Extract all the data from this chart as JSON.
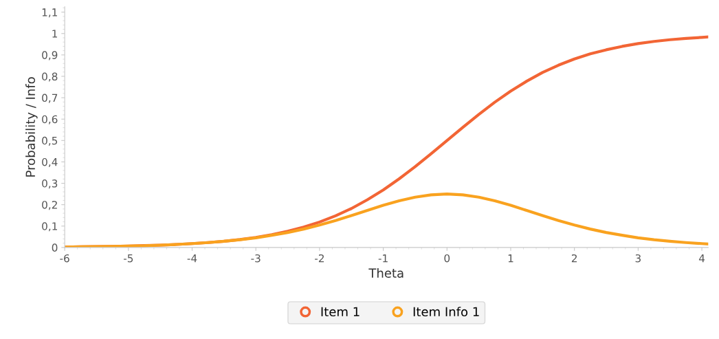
{
  "chart_data": {
    "type": "line",
    "xlabel": "Theta",
    "ylabel": "Probability / Info",
    "x": [
      -6,
      -5.75,
      -5.5,
      -5.25,
      -5,
      -4.75,
      -4.5,
      -4.25,
      -4,
      -3.75,
      -3.5,
      -3.25,
      -3,
      -2.75,
      -2.5,
      -2.25,
      -2,
      -1.75,
      -1.5,
      -1.25,
      -1,
      -0.75,
      -0.5,
      -0.25,
      0,
      0.25,
      0.5,
      0.75,
      1,
      1.25,
      1.5,
      1.75,
      2,
      2.25,
      2.5,
      2.75,
      3,
      3.25,
      3.5,
      3.75,
      4,
      4.1
    ],
    "series": [
      {
        "name": "Item 1",
        "color": "#f26535",
        "values": [
          0.002,
          0.003,
          0.004,
          0.005,
          0.007,
          0.009,
          0.011,
          0.014,
          0.018,
          0.023,
          0.029,
          0.037,
          0.047,
          0.06,
          0.076,
          0.095,
          0.119,
          0.148,
          0.182,
          0.223,
          0.269,
          0.321,
          0.378,
          0.438,
          0.5,
          0.562,
          0.622,
          0.679,
          0.731,
          0.777,
          0.818,
          0.852,
          0.881,
          0.905,
          0.924,
          0.94,
          0.953,
          0.963,
          0.971,
          0.977,
          0.982,
          0.984
        ]
      },
      {
        "name": "Item Info 1",
        "color": "#f9a21f",
        "values": [
          0.002,
          0.003,
          0.004,
          0.005,
          0.007,
          0.008,
          0.011,
          0.014,
          0.018,
          0.023,
          0.029,
          0.036,
          0.045,
          0.057,
          0.07,
          0.086,
          0.105,
          0.126,
          0.149,
          0.173,
          0.197,
          0.218,
          0.235,
          0.246,
          0.25,
          0.246,
          0.235,
          0.218,
          0.197,
          0.173,
          0.149,
          0.126,
          0.105,
          0.086,
          0.07,
          0.057,
          0.045,
          0.036,
          0.029,
          0.023,
          0.018,
          0.016
        ]
      }
    ],
    "xlim": [
      -6,
      4.1
    ],
    "xticks": [
      -6,
      -5,
      -4,
      -3,
      -2,
      -1,
      0,
      1,
      2,
      3,
      4
    ],
    "ylim": [
      0,
      1.125
    ],
    "yticks": [
      0,
      {
        "value": 0.1,
        "label": "0,1"
      },
      {
        "value": 0.2,
        "label": "0,2"
      },
      {
        "value": 0.3,
        "label": "0,3"
      },
      {
        "value": 0.4,
        "label": "0,4"
      },
      {
        "value": 0.5,
        "label": "0,5"
      },
      {
        "value": 0.6,
        "label": "0,6"
      },
      {
        "value": 0.7,
        "label": "0,7"
      },
      {
        "value": 0.8,
        "label": "0,8"
      },
      {
        "value": 0.9,
        "label": "0,9"
      },
      1,
      {
        "value": 1.1,
        "label": "1,1"
      }
    ],
    "grid": false,
    "legend": "bottom",
    "marker": "none",
    "line_style": "solid"
  }
}
